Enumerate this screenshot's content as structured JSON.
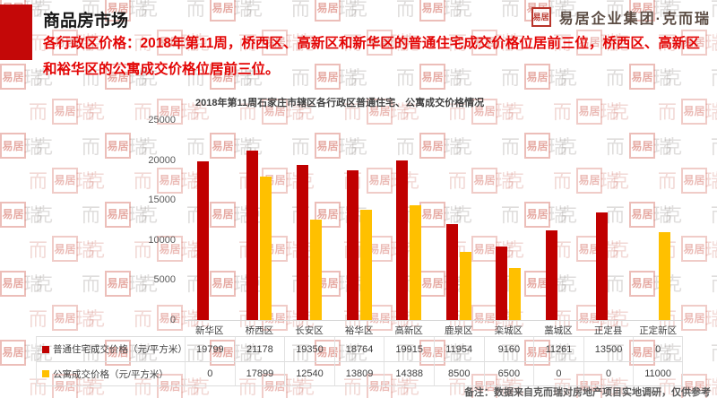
{
  "header": {
    "section_title": "商品房市场",
    "logo_seal_text": "易居",
    "logo_text": "易居企业集团·克而瑞",
    "headline": "各行政区价格：2018年第11周，桥西区、高新区和新华区的普通住宅成交价格位居前三位，桥西区、高新区和裕华区的公寓成交价格位居前三位。"
  },
  "chart_data": {
    "type": "bar",
    "title": "2018年第11周石家庄市辖区各行政区普通住宅、公寓成交价格情况",
    "categories": [
      "新华区",
      "桥西区",
      "长安区",
      "裕华区",
      "高新区",
      "鹿泉区",
      "栾城区",
      "藁城区",
      "正定县",
      "正定新区"
    ],
    "series": [
      {
        "name": "普通住宅成交价格（元/平方米）",
        "color": "#c00000",
        "values": [
          19799,
          21178,
          19350,
          18764,
          19915,
          11954,
          9160,
          11261,
          13500,
          0
        ]
      },
      {
        "name": "公寓成交价格（元/平方米）",
        "color": "#ffc000",
        "values": [
          0,
          17899,
          12540,
          13809,
          14388,
          8500,
          6500,
          0,
          0,
          11000
        ]
      }
    ],
    "xlabel": "",
    "ylabel": "",
    "ylim": [
      0,
      25000
    ],
    "y_ticks": [
      25000,
      20000,
      15000,
      10000,
      5000,
      0
    ],
    "grid": false,
    "legend_position": "table-below"
  },
  "footer": {
    "note": "备注：数据来自克而瑞对房地产项目实地调研，仅供参考"
  },
  "watermark": {
    "seal_text": "易居",
    "text": "克 而 瑞"
  },
  "colors": {
    "accent_red": "#c40808",
    "headline_red": "#e30505",
    "bar_red": "#c00000",
    "bar_yellow": "#ffc000"
  }
}
